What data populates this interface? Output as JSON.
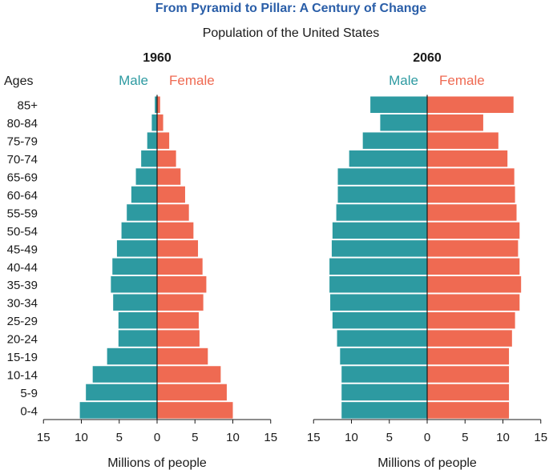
{
  "header": {
    "title": "From Pyramid to Pillar: A Century of Change",
    "subtitle": "Population of the United States"
  },
  "colors": {
    "title": "#2a5ea8",
    "male": "#2d9aa1",
    "female": "#ef6a52",
    "axis": "#1a1a1a"
  },
  "chart_data": {
    "type": "population-pyramid",
    "y_axis_label": "Ages",
    "age_groups": [
      "85+",
      "80-84",
      "75-79",
      "70-74",
      "65-69",
      "60-64",
      "55-59",
      "50-54",
      "45-49",
      "40-44",
      "35-39",
      "30-34",
      "25-29",
      "20-24",
      "15-19",
      "10-14",
      "5-9",
      "0-4"
    ],
    "x_ticks": [
      "15",
      "10",
      "5",
      "0",
      "5",
      "10",
      "15"
    ],
    "xlim": [
      -15,
      15
    ],
    "grid": false,
    "panels": [
      {
        "title": "1960",
        "xlabel": "Millions of people",
        "legend": {
          "male": "Male",
          "female": "Female"
        },
        "series": [
          {
            "name": "Male",
            "values": [
              0.3,
              0.7,
              1.3,
              2.1,
              2.8,
              3.4,
              4.0,
              4.7,
              5.3,
              5.9,
              6.1,
              5.8,
              5.1,
              5.1,
              6.6,
              8.5,
              9.4,
              10.2
            ]
          },
          {
            "name": "Female",
            "values": [
              0.4,
              0.8,
              1.6,
              2.5,
              3.1,
              3.7,
              4.2,
              4.8,
              5.4,
              6.0,
              6.5,
              6.1,
              5.5,
              5.6,
              6.7,
              8.4,
              9.2,
              10.0
            ]
          }
        ]
      },
      {
        "title": "2060",
        "xlabel": "Millions of people",
        "legend": {
          "male": "Male",
          "female": "Female"
        },
        "series": [
          {
            "name": "Male",
            "values": [
              7.5,
              6.2,
              8.5,
              10.3,
              11.8,
              11.8,
              12.0,
              12.5,
              12.6,
              12.9,
              12.9,
              12.8,
              12.5,
              11.9,
              11.5,
              11.3,
              11.3,
              11.3
            ]
          },
          {
            "name": "Female",
            "values": [
              11.4,
              7.4,
              9.4,
              10.6,
              11.5,
              11.6,
              11.8,
              12.2,
              12.0,
              12.2,
              12.4,
              12.2,
              11.6,
              11.2,
              10.8,
              10.8,
              10.8,
              10.8
            ]
          }
        ]
      }
    ]
  }
}
